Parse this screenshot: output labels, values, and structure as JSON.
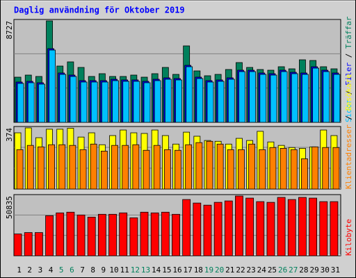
{
  "chart_data": [
    {
      "type": "bar",
      "title": "Daglig användning för Oktober 2019",
      "ylim": [
        0,
        8727
      ],
      "yticks": [
        8727
      ],
      "legend_separator": " / ",
      "series": [
        {
          "name": "Träffar",
          "color": "#00805c",
          "values": [
            3885,
            4064,
            3945,
            8727,
            4841,
            5200,
            4722,
            3945,
            4184,
            3945,
            3945,
            4064,
            3885,
            4184,
            4722,
            4124,
            6575,
            4423,
            4005,
            4124,
            4543,
            5140,
            4722,
            4543,
            4483,
            4782,
            4602,
            5379,
            5320,
            4782,
            4602
          ]
        },
        {
          "name": "Filer",
          "color": "#0000ff",
          "values": [
            3467,
            3527,
            3407,
            6336,
            4244,
            4065,
            3587,
            3587,
            3587,
            3706,
            3647,
            3647,
            3527,
            3706,
            3826,
            3766,
            4902,
            3886,
            3587,
            3647,
            3826,
            4483,
            4483,
            4244,
            4184,
            4483,
            4304,
            4244,
            4782,
            4483,
            4244
          ]
        },
        {
          "name": "Sidor",
          "color": "#00c0ff",
          "values": [
            3347,
            3407,
            3287,
            6216,
            4124,
            3945,
            3467,
            3467,
            3467,
            3586,
            3527,
            3527,
            3407,
            3586,
            3706,
            3646,
            4782,
            3766,
            3467,
            3527,
            3706,
            4363,
            4363,
            4124,
            4064,
            4363,
            4184,
            4124,
            4662,
            4363,
            4124
          ]
        }
      ]
    },
    {
      "type": "bar",
      "ylim": [
        0,
        374
      ],
      "yticks": [
        374
      ],
      "legend_separator": " / ",
      "series": [
        {
          "name": "Besökare",
          "color": "#ffff00",
          "values": [
            344,
            374,
            314,
            366,
            366,
            372,
            318,
            344,
            271,
            327,
            361,
            344,
            340,
            361,
            327,
            275,
            348,
            323,
            297,
            292,
            275,
            310,
            297,
            353,
            288,
            267,
            254,
            249,
            258,
            361,
            327
          ]
        },
        {
          "name": "Klientadresser",
          "color": "#ff8000",
          "values": [
            241,
            267,
            258,
            271,
            271,
            267,
            241,
            275,
            232,
            267,
            267,
            271,
            237,
            267,
            241,
            237,
            271,
            284,
            292,
            275,
            241,
            241,
            275,
            241,
            254,
            249,
            241,
            185,
            258,
            254,
            254
          ]
        }
      ]
    },
    {
      "type": "bar",
      "ylim": [
        0,
        50835
      ],
      "yticks": [
        50835
      ],
      "legend_separator": " / ",
      "categories": [
        "1",
        "2",
        "3",
        "4",
        "5",
        "6",
        "7",
        "8",
        "9",
        "10",
        "11",
        "12",
        "13",
        "14",
        "15",
        "16",
        "17",
        "18",
        "19",
        "20",
        "21",
        "22",
        "23",
        "24",
        "25",
        "26",
        "27",
        "28",
        "29",
        "30",
        "31"
      ],
      "label_colors": [
        "#000000",
        "#000000",
        "#000000",
        "#000000",
        "#00805c",
        "#00805c",
        "#000000",
        "#000000",
        "#000000",
        "#000000",
        "#000000",
        "#00805c",
        "#00805c",
        "#000000",
        "#000000",
        "#000000",
        "#000000",
        "#000000",
        "#00805c",
        "#00805c",
        "#000000",
        "#000000",
        "#000000",
        "#000000",
        "#000000",
        "#00805c",
        "#00805c",
        "#000000",
        "#000000",
        "#000000",
        "#000000"
      ],
      "series": [
        {
          "name": "Kilobyte",
          "color": "#ff0000",
          "values": [
            18538,
            19734,
            19734,
            34086,
            36478,
            37076,
            34684,
            32890,
            35282,
            35282,
            36478,
            32292,
            37076,
            36478,
            37076,
            35282,
            47840,
            44850,
            43056,
            45448,
            46644,
            50835,
            49036,
            46046,
            45448,
            49634,
            47840,
            49634,
            49036,
            46046,
            46046
          ]
        }
      ]
    }
  ]
}
